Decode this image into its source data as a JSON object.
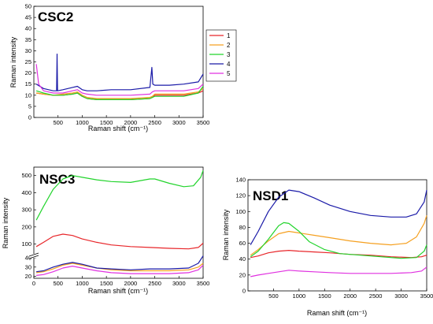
{
  "chart_data": [
    {
      "type": "line",
      "title": "CSC2",
      "xlabel": "Raman shift (cm⁻¹)",
      "ylabel": "Raman intensity",
      "xlim": [
        0,
        3500
      ],
      "ylim": [
        0,
        50
      ],
      "xticks": [
        500,
        1000,
        1500,
        2000,
        2500,
        3000,
        3500
      ],
      "yticks": [
        0,
        5,
        10,
        15,
        20,
        25,
        30,
        35,
        40,
        45,
        50
      ],
      "legend": {
        "placement": "right",
        "entries": [
          "1",
          "2",
          "3",
          "4",
          "5"
        ]
      },
      "series": [
        {
          "name": "1",
          "color": "#e8262a",
          "x": [
            50,
            200,
            400,
            600,
            800,
            900,
            1000,
            1100,
            1300,
            1600,
            2000,
            2400,
            2450,
            2500,
            2800,
            3100,
            3400,
            3500
          ],
          "y": [
            11,
            10.5,
            10,
            10,
            10.5,
            11,
            9.5,
            8.5,
            8,
            8,
            8,
            8.5,
            9,
            10,
            10,
            10,
            11,
            12
          ]
        },
        {
          "name": "2",
          "color": "#f5a020",
          "x": [
            50,
            200,
            400,
            600,
            800,
            900,
            1000,
            1100,
            1300,
            1600,
            2000,
            2400,
            2450,
            2500,
            2800,
            3100,
            3400,
            3500
          ],
          "y": [
            11,
            10.5,
            10,
            10.5,
            11,
            11.5,
            10,
            9,
            8.5,
            8.5,
            8.5,
            9,
            9.5,
            10.5,
            10.5,
            10.5,
            11.5,
            13
          ]
        },
        {
          "name": "3",
          "color": "#22d42c",
          "x": [
            50,
            200,
            400,
            600,
            800,
            900,
            1000,
            1100,
            1300,
            1600,
            2000,
            2400,
            2450,
            2500,
            2800,
            3100,
            3400,
            3500
          ],
          "y": [
            12,
            11,
            10,
            10,
            10.5,
            11,
            9.5,
            8.5,
            8,
            8,
            8,
            8.5,
            9,
            9.5,
            9.5,
            9.5,
            11,
            14
          ]
        },
        {
          "name": "4",
          "color": "#1a1aa8",
          "x": [
            50,
            200,
            400,
            470,
            480,
            490,
            600,
            800,
            900,
            1000,
            1100,
            1300,
            1600,
            2000,
            2400,
            2440,
            2460,
            2500,
            2800,
            3100,
            3400,
            3500
          ],
          "y": [
            15,
            13,
            12,
            12,
            28.5,
            12,
            12.5,
            13.5,
            14,
            12.5,
            12,
            12,
            12.5,
            12.5,
            13.5,
            22.5,
            15,
            14.5,
            14.5,
            15,
            16,
            19.5
          ]
        },
        {
          "name": "5",
          "color": "#e030e0",
          "x": [
            50,
            100,
            200,
            400,
            600,
            800,
            900,
            1000,
            1100,
            1300,
            1600,
            2000,
            2400,
            2450,
            2500,
            2800,
            3100,
            3400,
            3500
          ],
          "y": [
            24,
            15,
            12,
            11,
            11,
            12,
            12.5,
            11,
            10.5,
            10,
            10,
            10,
            10.5,
            11.5,
            12,
            12,
            12,
            13,
            15
          ]
        }
      ]
    },
    {
      "type": "line",
      "title": "NSC3",
      "xlabel": "Raman shift (cm⁻¹)",
      "ylabel": "Raman intensity",
      "xlim": [
        0,
        3500
      ],
      "yticks": [
        20,
        30,
        40,
        100,
        200,
        300,
        400,
        500
      ],
      "axis_break": true,
      "xticks": [
        0,
        500,
        1000,
        1500,
        2000,
        2500,
        3000,
        3500
      ],
      "series": [
        {
          "name": "1",
          "color": "#e8262a",
          "x": [
            50,
            200,
            400,
            600,
            800,
            1000,
            1300,
            1600,
            2000,
            2400,
            2800,
            3200,
            3400,
            3500
          ],
          "y": [
            85,
            110,
            145,
            158,
            150,
            130,
            110,
            95,
            85,
            80,
            75,
            72,
            80,
            105
          ]
        },
        {
          "name": "2",
          "color": "#f5a020",
          "x": [
            50,
            200,
            400,
            600,
            800,
            1000,
            1300,
            1600,
            2000,
            2400,
            2800,
            3200,
            3400,
            3500
          ],
          "y": [
            24,
            25,
            28,
            32,
            34,
            32,
            29,
            27,
            26,
            26,
            26,
            27,
            30,
            34
          ]
        },
        {
          "name": "3",
          "color": "#22d42c",
          "x": [
            50,
            200,
            400,
            600,
            800,
            1000,
            1300,
            1600,
            2000,
            2400,
            2500,
            2800,
            3100,
            3300,
            3450,
            3500
          ],
          "y": [
            240,
            320,
            420,
            480,
            500,
            490,
            475,
            465,
            460,
            480,
            480,
            455,
            435,
            440,
            490,
            530
          ]
        },
        {
          "name": "4",
          "color": "#1a1aa8",
          "x": [
            50,
            200,
            400,
            600,
            800,
            1000,
            1300,
            1600,
            2000,
            2400,
            2800,
            3200,
            3400,
            3500
          ],
          "y": [
            25,
            26,
            30,
            33,
            35,
            33,
            29,
            28,
            27,
            28,
            28,
            29,
            34,
            42
          ]
        },
        {
          "name": "5",
          "color": "#e030e0",
          "x": [
            50,
            200,
            400,
            600,
            800,
            1000,
            1300,
            1600,
            2000,
            2400,
            2800,
            3200,
            3400,
            3500
          ],
          "y": [
            21,
            22,
            25,
            29,
            31,
            29,
            26,
            24,
            23,
            23,
            23,
            24,
            27,
            32
          ]
        }
      ]
    },
    {
      "type": "line",
      "title": "NSD1",
      "xlabel": "Raman shift (cm⁻¹)",
      "ylabel": "Raman intensity",
      "xlim": [
        0,
        3500
      ],
      "ylim": [
        0,
        140
      ],
      "xticks": [
        500,
        1000,
        1500,
        2000,
        2500,
        3000,
        3500
      ],
      "yticks": [
        0,
        20,
        40,
        60,
        80,
        100,
        120,
        140
      ],
      "series": [
        {
          "name": "1",
          "color": "#e8262a",
          "x": [
            50,
            200,
            400,
            600,
            800,
            1000,
            1300,
            1600,
            2000,
            2400,
            2800,
            3200,
            3400,
            3500
          ],
          "y": [
            42,
            44,
            48,
            50,
            51,
            50,
            49,
            48,
            46,
            45,
            43,
            42,
            43,
            45
          ]
        },
        {
          "name": "2",
          "color": "#f5a020",
          "x": [
            50,
            200,
            400,
            600,
            800,
            1000,
            1300,
            1600,
            2000,
            2400,
            2800,
            3100,
            3300,
            3450,
            3500
          ],
          "y": [
            45,
            52,
            63,
            72,
            75,
            73,
            70,
            67,
            63,
            60,
            58,
            60,
            68,
            85,
            95
          ]
        },
        {
          "name": "3",
          "color": "#22d42c",
          "x": [
            50,
            200,
            400,
            600,
            700,
            800,
            1000,
            1200,
            1500,
            1800,
            2200,
            2600,
            3000,
            3300,
            3450,
            3500
          ],
          "y": [
            43,
            50,
            65,
            82,
            86,
            85,
            75,
            62,
            52,
            47,
            45,
            43,
            41,
            42,
            50,
            58
          ]
        },
        {
          "name": "4",
          "color": "#1a1aa8",
          "x": [
            50,
            200,
            400,
            600,
            800,
            1000,
            1300,
            1600,
            2000,
            2400,
            2800,
            3100,
            3300,
            3450,
            3500
          ],
          "y": [
            58,
            75,
            100,
            118,
            127,
            125,
            117,
            108,
            100,
            95,
            93,
            93,
            97,
            112,
            127
          ]
        },
        {
          "name": "5",
          "color": "#e030e0",
          "x": [
            50,
            200,
            400,
            600,
            800,
            1000,
            1300,
            1600,
            2000,
            2400,
            2800,
            3200,
            3400,
            3500
          ],
          "y": [
            18,
            20,
            22,
            24,
            26,
            25,
            24,
            23,
            22,
            22,
            22,
            23,
            25,
            30
          ]
        }
      ]
    }
  ]
}
